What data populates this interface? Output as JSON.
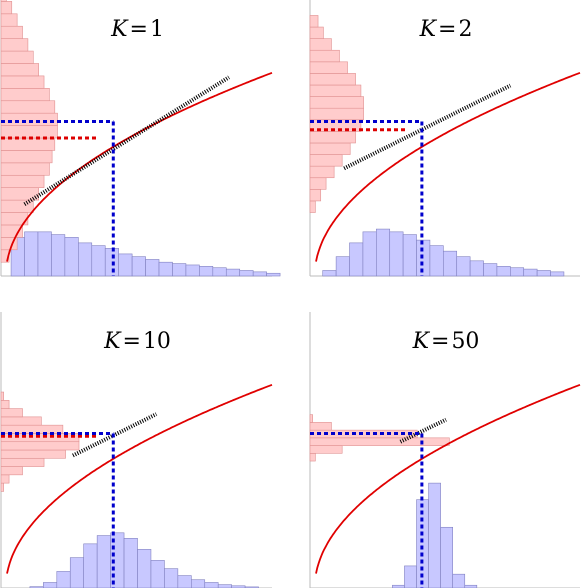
{
  "colors": {
    "curve": "#e00000",
    "blue_line": "#0000cc",
    "red_line": "#dd0000",
    "blue_fill": "#c8c8ff",
    "blue_edge": "#8080c0",
    "red_fill": "#ffcccc",
    "red_edge": "#e09090",
    "tangent": "#000000",
    "axis": "#bbbbbb"
  },
  "chart_data": [
    {
      "type": "bar",
      "title_var": "K",
      "title_eq": "=",
      "title_val": "1",
      "xlim": [
        0,
        1
      ],
      "ylim": [
        0,
        1
      ],
      "curve": "sqrt",
      "mean_x": 0.41,
      "fx": 0.56,
      "fmean": 0.5,
      "tangent": [
        [
          0.08,
          0.26
        ],
        [
          0.84,
          0.72
        ]
      ],
      "blue_hist": [
        0.14,
        0.16,
        0.16,
        0.15,
        0.14,
        0.12,
        0.11,
        0.1,
        0.08,
        0.07,
        0.06,
        0.05,
        0.045,
        0.04,
        0.035,
        0.03,
        0.025,
        0.02,
        0.015,
        0.01
      ],
      "red_hist": [
        0.03,
        0.06,
        0.08,
        0.1,
        0.12,
        0.14,
        0.16,
        0.18,
        0.19,
        0.2,
        0.21,
        0.21,
        0.2,
        0.18,
        0.16,
        0.14,
        0.12,
        0.1,
        0.08,
        0.06,
        0.04,
        0.02
      ]
    },
    {
      "type": "bar",
      "title_var": "K",
      "title_eq": "=",
      "title_val": "2",
      "xlim": [
        0,
        1
      ],
      "ylim": [
        0,
        1
      ],
      "curve": "sqrt",
      "mean_x": 0.41,
      "fx": 0.56,
      "fmean": 0.53,
      "tangent": [
        [
          0.12,
          0.39
        ],
        [
          0.74,
          0.69
        ]
      ],
      "blue_hist": [
        0.02,
        0.07,
        0.12,
        0.16,
        0.17,
        0.16,
        0.15,
        0.13,
        0.11,
        0.09,
        0.07,
        0.055,
        0.045,
        0.035,
        0.03,
        0.025,
        0.02,
        0.015
      ],
      "red_hist": [
        0.02,
        0.04,
        0.06,
        0.09,
        0.12,
        0.15,
        0.17,
        0.19,
        0.2,
        0.2,
        0.19,
        0.17,
        0.14,
        0.11,
        0.08,
        0.05,
        0.03
      ]
    },
    {
      "type": "bar",
      "title_var": "K",
      "title_eq": "=",
      "title_val": "10",
      "xlim": [
        0,
        1
      ],
      "ylim": [
        0,
        1
      ],
      "curve": "sqrt",
      "mean_x": 0.41,
      "fx": 0.56,
      "fmean": 0.55,
      "tangent": [
        [
          0.26,
          0.48
        ],
        [
          0.57,
          0.63
        ]
      ],
      "blue_hist": [
        0.005,
        0.02,
        0.06,
        0.11,
        0.16,
        0.19,
        0.2,
        0.18,
        0.14,
        0.1,
        0.07,
        0.045,
        0.03,
        0.02,
        0.012,
        0.008,
        0.004
      ],
      "red_hist": [
        0.01,
        0.03,
        0.08,
        0.16,
        0.24,
        0.29,
        0.29,
        0.23,
        0.15,
        0.08,
        0.03,
        0.01
      ]
    },
    {
      "type": "bar",
      "title_var": "K",
      "title_eq": "=",
      "title_val": "50",
      "xlim": [
        0,
        1
      ],
      "ylim": [
        0,
        1
      ],
      "curve": "sqrt",
      "mean_x": 0.41,
      "fx": 0.56,
      "fmean": 0.56,
      "tangent": [
        [
          0.33,
          0.53
        ],
        [
          0.5,
          0.61
        ]
      ],
      "blue_hist": [
        0.01,
        0.08,
        0.32,
        0.38,
        0.22,
        0.05,
        0.01
      ],
      "red_hist": [
        0.02,
        0.12,
        0.52,
        0.4,
        0.08,
        0.01
      ]
    }
  ]
}
